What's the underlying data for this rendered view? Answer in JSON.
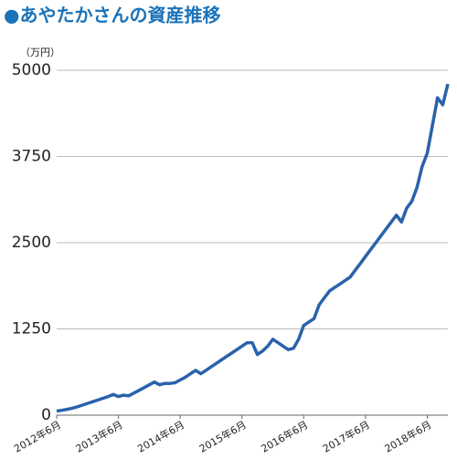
{
  "chart_data": {
    "type": "line",
    "title": "●あやたかさんの資産推移",
    "y_unit": "（万円）",
    "color": "#2a62aa",
    "grid": true,
    "ylim": [
      0,
      5000
    ],
    "yticks": [
      0,
      1250,
      2500,
      3750,
      5000
    ],
    "categories": [
      "2012年6月",
      null,
      null,
      null,
      null,
      null,
      null,
      null,
      null,
      null,
      null,
      null,
      "2013年6月",
      null,
      null,
      null,
      null,
      null,
      null,
      null,
      null,
      null,
      null,
      null,
      "2014年6月",
      null,
      null,
      null,
      null,
      null,
      null,
      null,
      null,
      null,
      null,
      null,
      "2015年6月",
      null,
      null,
      null,
      null,
      null,
      null,
      null,
      null,
      null,
      null,
      null,
      "2016年6月",
      null,
      null,
      null,
      null,
      null,
      null,
      null,
      null,
      null,
      null,
      null,
      "2017年6月",
      null,
      null,
      null,
      null,
      null,
      null,
      null,
      null,
      null,
      null,
      null,
      "2018年6月",
      null,
      null,
      null,
      null
    ],
    "values": [
      60,
      70,
      85,
      100,
      120,
      145,
      170,
      195,
      220,
      245,
      270,
      300,
      270,
      290,
      280,
      320,
      360,
      400,
      440,
      480,
      440,
      460,
      460,
      470,
      510,
      550,
      600,
      650,
      600,
      650,
      700,
      750,
      800,
      850,
      900,
      950,
      1000,
      1050,
      1050,
      880,
      930,
      1000,
      1100,
      1050,
      1000,
      950,
      970,
      1100,
      1300,
      1350,
      1400,
      1600,
      1700,
      1800,
      1850,
      1900,
      1950,
      2000,
      2100,
      2200,
      2300,
      2400,
      2500,
      2600,
      2700,
      2800,
      2900,
      2800,
      3000,
      3100,
      3300,
      3600,
      3800,
      4200,
      4600,
      4500,
      4800
    ]
  }
}
